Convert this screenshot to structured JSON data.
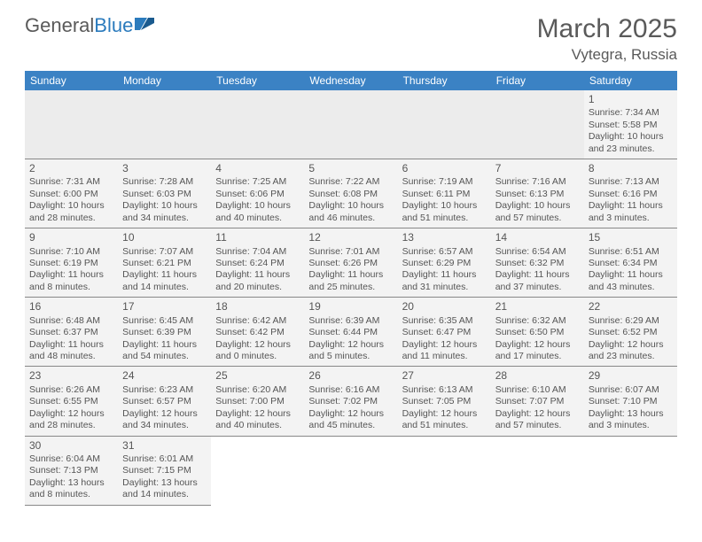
{
  "logo": {
    "text1": "General",
    "text2": "Blue"
  },
  "header": {
    "month": "March 2025",
    "location": "Vytegra, Russia"
  },
  "colors": {
    "header_bg": "#3b82c4",
    "header_fg": "#ffffff",
    "cell_bg": "#f3f3f3",
    "blank_bg": "#ececec",
    "text": "#555555",
    "border": "#888888"
  },
  "daysOfWeek": [
    "Sunday",
    "Monday",
    "Tuesday",
    "Wednesday",
    "Thursday",
    "Friday",
    "Saturday"
  ],
  "layout": {
    "leading_blanks": 6,
    "trailing_blanks": 5,
    "rows": 6,
    "cols": 7
  },
  "days": [
    {
      "n": 1,
      "sunrise": "7:34 AM",
      "sunset": "5:58 PM",
      "dl1": "10 hours",
      "dl2": "and 23 minutes."
    },
    {
      "n": 2,
      "sunrise": "7:31 AM",
      "sunset": "6:00 PM",
      "dl1": "10 hours",
      "dl2": "and 28 minutes."
    },
    {
      "n": 3,
      "sunrise": "7:28 AM",
      "sunset": "6:03 PM",
      "dl1": "10 hours",
      "dl2": "and 34 minutes."
    },
    {
      "n": 4,
      "sunrise": "7:25 AM",
      "sunset": "6:06 PM",
      "dl1": "10 hours",
      "dl2": "and 40 minutes."
    },
    {
      "n": 5,
      "sunrise": "7:22 AM",
      "sunset": "6:08 PM",
      "dl1": "10 hours",
      "dl2": "and 46 minutes."
    },
    {
      "n": 6,
      "sunrise": "7:19 AM",
      "sunset": "6:11 PM",
      "dl1": "10 hours",
      "dl2": "and 51 minutes."
    },
    {
      "n": 7,
      "sunrise": "7:16 AM",
      "sunset": "6:13 PM",
      "dl1": "10 hours",
      "dl2": "and 57 minutes."
    },
    {
      "n": 8,
      "sunrise": "7:13 AM",
      "sunset": "6:16 PM",
      "dl1": "11 hours",
      "dl2": "and 3 minutes."
    },
    {
      "n": 9,
      "sunrise": "7:10 AM",
      "sunset": "6:19 PM",
      "dl1": "11 hours",
      "dl2": "and 8 minutes."
    },
    {
      "n": 10,
      "sunrise": "7:07 AM",
      "sunset": "6:21 PM",
      "dl1": "11 hours",
      "dl2": "and 14 minutes."
    },
    {
      "n": 11,
      "sunrise": "7:04 AM",
      "sunset": "6:24 PM",
      "dl1": "11 hours",
      "dl2": "and 20 minutes."
    },
    {
      "n": 12,
      "sunrise": "7:01 AM",
      "sunset": "6:26 PM",
      "dl1": "11 hours",
      "dl2": "and 25 minutes."
    },
    {
      "n": 13,
      "sunrise": "6:57 AM",
      "sunset": "6:29 PM",
      "dl1": "11 hours",
      "dl2": "and 31 minutes."
    },
    {
      "n": 14,
      "sunrise": "6:54 AM",
      "sunset": "6:32 PM",
      "dl1": "11 hours",
      "dl2": "and 37 minutes."
    },
    {
      "n": 15,
      "sunrise": "6:51 AM",
      "sunset": "6:34 PM",
      "dl1": "11 hours",
      "dl2": "and 43 minutes."
    },
    {
      "n": 16,
      "sunrise": "6:48 AM",
      "sunset": "6:37 PM",
      "dl1": "11 hours",
      "dl2": "and 48 minutes."
    },
    {
      "n": 17,
      "sunrise": "6:45 AM",
      "sunset": "6:39 PM",
      "dl1": "11 hours",
      "dl2": "and 54 minutes."
    },
    {
      "n": 18,
      "sunrise": "6:42 AM",
      "sunset": "6:42 PM",
      "dl1": "12 hours",
      "dl2": "and 0 minutes."
    },
    {
      "n": 19,
      "sunrise": "6:39 AM",
      "sunset": "6:44 PM",
      "dl1": "12 hours",
      "dl2": "and 5 minutes."
    },
    {
      "n": 20,
      "sunrise": "6:35 AM",
      "sunset": "6:47 PM",
      "dl1": "12 hours",
      "dl2": "and 11 minutes."
    },
    {
      "n": 21,
      "sunrise": "6:32 AM",
      "sunset": "6:50 PM",
      "dl1": "12 hours",
      "dl2": "and 17 minutes."
    },
    {
      "n": 22,
      "sunrise": "6:29 AM",
      "sunset": "6:52 PM",
      "dl1": "12 hours",
      "dl2": "and 23 minutes."
    },
    {
      "n": 23,
      "sunrise": "6:26 AM",
      "sunset": "6:55 PM",
      "dl1": "12 hours",
      "dl2": "and 28 minutes."
    },
    {
      "n": 24,
      "sunrise": "6:23 AM",
      "sunset": "6:57 PM",
      "dl1": "12 hours",
      "dl2": "and 34 minutes."
    },
    {
      "n": 25,
      "sunrise": "6:20 AM",
      "sunset": "7:00 PM",
      "dl1": "12 hours",
      "dl2": "and 40 minutes."
    },
    {
      "n": 26,
      "sunrise": "6:16 AM",
      "sunset": "7:02 PM",
      "dl1": "12 hours",
      "dl2": "and 45 minutes."
    },
    {
      "n": 27,
      "sunrise": "6:13 AM",
      "sunset": "7:05 PM",
      "dl1": "12 hours",
      "dl2": "and 51 minutes."
    },
    {
      "n": 28,
      "sunrise": "6:10 AM",
      "sunset": "7:07 PM",
      "dl1": "12 hours",
      "dl2": "and 57 minutes."
    },
    {
      "n": 29,
      "sunrise": "6:07 AM",
      "sunset": "7:10 PM",
      "dl1": "13 hours",
      "dl2": "and 3 minutes."
    },
    {
      "n": 30,
      "sunrise": "6:04 AM",
      "sunset": "7:13 PM",
      "dl1": "13 hours",
      "dl2": "and 8 minutes."
    },
    {
      "n": 31,
      "sunrise": "6:01 AM",
      "sunset": "7:15 PM",
      "dl1": "13 hours",
      "dl2": "and 14 minutes."
    }
  ],
  "labels": {
    "sunrise": "Sunrise: ",
    "sunset": "Sunset: ",
    "daylight": "Daylight: "
  }
}
